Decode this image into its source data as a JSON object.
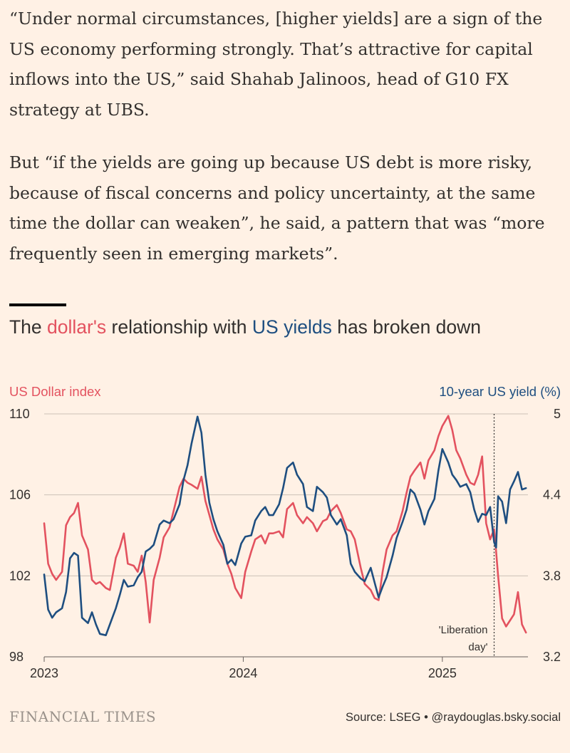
{
  "article": {
    "paragraph1": "“Under normal circumstances, [higher yields] are a sign of the US economy performing strongly. That’s attractive for capital inflows into the US,” said Shahab Jalinoos, head of G10 FX strategy at UBS.",
    "paragraph2": "But “if the yields are going up because US debt is more risky, because of fiscal concerns and policy uncertainty, at the same time the dollar can weaken”, he said, a pattern that was “more frequently seen in emerging markets”."
  },
  "headline": {
    "part1": "The ",
    "red": "dollar's",
    "part2": " relationship with ",
    "blue": "US yields",
    "part3": " has broken down"
  },
  "footer": {
    "brand": "FINANCIAL TIMES",
    "source": "Source: LSEG • @raydouglas.bsky.social"
  },
  "colors": {
    "background": "#fff1e5",
    "dollar": "#e3525f",
    "yield": "#1e4e80",
    "grid": "#ccc1b7",
    "text": "#33302e"
  },
  "chart_data": {
    "type": "line",
    "left_axis_label": "US Dollar index",
    "right_axis_label": "10-year US yield (%)",
    "left_ylim": [
      98,
      110
    ],
    "right_ylim": [
      3.2,
      5
    ],
    "left_ticks": [
      "110",
      "106",
      "102",
      "98"
    ],
    "left_tick_values": [
      110,
      106,
      102,
      98
    ],
    "right_ticks": [
      "5",
      "4.4",
      "3.8",
      "3.2"
    ],
    "right_tick_values": [
      5,
      4.4,
      3.8,
      3.2
    ],
    "x_ticks": [
      "2023",
      "2024",
      "2025"
    ],
    "x_tick_values": [
      2023.0,
      2024.0,
      2025.0
    ],
    "xlim": [
      2023.0,
      2025.43
    ],
    "grid": true,
    "annotation": {
      "text_line1": "'Liberation",
      "text_line2": "day'",
      "x": 2025.26
    },
    "series": [
      {
        "name": "US Dollar index",
        "axis": "left",
        "x": [
          2023.0,
          2023.02,
          2023.04,
          2023.06,
          2023.09,
          2023.11,
          2023.13,
          2023.15,
          2023.17,
          2023.19,
          2023.22,
          2023.24,
          2023.26,
          2023.28,
          2023.31,
          2023.33,
          2023.36,
          2023.38,
          2023.4,
          2023.42,
          2023.45,
          2023.47,
          2023.49,
          2023.51,
          2023.53,
          2023.55,
          2023.58,
          2023.6,
          2023.63,
          2023.65,
          2023.68,
          2023.7,
          2023.72,
          2023.74,
          2023.77,
          2023.79,
          2023.81,
          2023.83,
          2023.85,
          2023.87,
          2023.9,
          2023.92,
          2023.94,
          2023.96,
          2023.99,
          2024.01,
          2024.04,
          2024.06,
          2024.09,
          2024.11,
          2024.13,
          2024.15,
          2024.18,
          2024.2,
          2024.22,
          2024.25,
          2024.27,
          2024.3,
          2024.32,
          2024.35,
          2024.37,
          2024.4,
          2024.42,
          2024.44,
          2024.47,
          2024.49,
          2024.52,
          2024.54,
          2024.56,
          2024.59,
          2024.61,
          2024.64,
          2024.66,
          2024.68,
          2024.7,
          2024.72,
          2024.75,
          2024.77,
          2024.8,
          2024.82,
          2024.84,
          2024.86,
          2024.89,
          2024.91,
          2024.93,
          2024.96,
          2024.98,
          2025.0,
          2025.03,
          2025.05,
          2025.07,
          2025.09,
          2025.12,
          2025.14,
          2025.16,
          2025.18,
          2025.2,
          2025.22,
          2025.24,
          2025.26,
          2025.27,
          2025.28,
          2025.3,
          2025.32,
          2025.34,
          2025.36,
          2025.38,
          2025.4,
          2025.42
        ],
        "values": [
          104.6,
          102.6,
          102.1,
          101.8,
          102.2,
          104.5,
          104.9,
          105.1,
          105.6,
          104.0,
          103.3,
          101.8,
          101.6,
          101.7,
          101.4,
          101.3,
          102.9,
          103.4,
          104.1,
          102.6,
          102.5,
          102.2,
          103.0,
          101.7,
          99.7,
          101.8,
          102.9,
          103.9,
          104.4,
          105.2,
          106.4,
          106.8,
          106.6,
          106.5,
          106.3,
          106.9,
          105.7,
          105.0,
          104.3,
          103.8,
          103.3,
          102.6,
          102.1,
          101.4,
          100.9,
          102.2,
          103.2,
          103.8,
          104.0,
          103.6,
          104.1,
          104.1,
          104.2,
          103.9,
          105.3,
          105.6,
          105.0,
          104.6,
          104.9,
          104.6,
          104.2,
          104.7,
          104.8,
          105.2,
          105.5,
          105.1,
          104.3,
          104.2,
          103.8,
          102.4,
          101.6,
          101.3,
          100.9,
          100.8,
          102.2,
          103.3,
          104.0,
          104.2,
          105.2,
          106.1,
          106.9,
          107.2,
          107.6,
          106.8,
          107.7,
          108.2,
          108.9,
          109.4,
          109.9,
          109.2,
          108.2,
          107.8,
          107.0,
          106.6,
          106.5,
          107.0,
          107.9,
          104.6,
          103.8,
          104.3,
          103.2,
          102.0,
          99.9,
          99.5,
          99.8,
          100.1,
          101.2,
          99.6,
          99.2
        ]
      },
      {
        "name": "10-year US yield (%)",
        "axis": "right",
        "x": [
          2023.0,
          2023.02,
          2023.04,
          2023.06,
          2023.09,
          2023.11,
          2023.13,
          2023.15,
          2023.17,
          2023.19,
          2023.22,
          2023.24,
          2023.26,
          2023.28,
          2023.31,
          2023.33,
          2023.36,
          2023.38,
          2023.4,
          2023.42,
          2023.45,
          2023.47,
          2023.49,
          2023.51,
          2023.53,
          2023.55,
          2023.58,
          2023.6,
          2023.63,
          2023.65,
          2023.68,
          2023.7,
          2023.72,
          2023.74,
          2023.77,
          2023.79,
          2023.81,
          2023.83,
          2023.85,
          2023.87,
          2023.9,
          2023.92,
          2023.94,
          2023.96,
          2023.99,
          2024.01,
          2024.04,
          2024.06,
          2024.09,
          2024.11,
          2024.13,
          2024.15,
          2024.18,
          2024.2,
          2024.22,
          2024.25,
          2024.27,
          2024.3,
          2024.32,
          2024.35,
          2024.37,
          2024.4,
          2024.42,
          2024.44,
          2024.47,
          2024.49,
          2024.52,
          2024.54,
          2024.56,
          2024.59,
          2024.61,
          2024.64,
          2024.66,
          2024.68,
          2024.7,
          2024.72,
          2024.75,
          2024.77,
          2024.8,
          2024.82,
          2024.84,
          2024.86,
          2024.89,
          2024.91,
          2024.93,
          2024.96,
          2024.98,
          2025.0,
          2025.03,
          2025.05,
          2025.07,
          2025.09,
          2025.12,
          2025.14,
          2025.16,
          2025.18,
          2025.2,
          2025.22,
          2025.24,
          2025.26,
          2025.27,
          2025.28,
          2025.3,
          2025.32,
          2025.34,
          2025.36,
          2025.38,
          2025.4,
          2025.42
        ],
        "values": [
          3.81,
          3.55,
          3.49,
          3.53,
          3.56,
          3.68,
          3.93,
          3.97,
          3.95,
          3.49,
          3.45,
          3.53,
          3.44,
          3.37,
          3.36,
          3.44,
          3.56,
          3.66,
          3.77,
          3.72,
          3.73,
          3.79,
          3.83,
          3.98,
          4.0,
          4.03,
          4.18,
          4.21,
          4.19,
          4.22,
          4.33,
          4.51,
          4.62,
          4.78,
          4.98,
          4.86,
          4.55,
          4.34,
          4.22,
          4.13,
          4.03,
          3.89,
          3.92,
          3.88,
          4.04,
          4.09,
          4.1,
          4.21,
          4.28,
          4.31,
          4.25,
          4.25,
          4.33,
          4.45,
          4.6,
          4.64,
          4.55,
          4.48,
          4.31,
          4.28,
          4.46,
          4.42,
          4.38,
          4.25,
          4.18,
          4.22,
          4.1,
          3.89,
          3.83,
          3.78,
          3.76,
          3.86,
          3.75,
          3.64,
          3.72,
          3.79,
          3.95,
          4.08,
          4.2,
          4.29,
          4.44,
          4.41,
          4.29,
          4.18,
          4.28,
          4.37,
          4.58,
          4.74,
          4.64,
          4.55,
          4.51,
          4.46,
          4.48,
          4.42,
          4.29,
          4.2,
          4.26,
          4.25,
          4.31,
          4.05,
          4.01,
          4.39,
          4.35,
          4.19,
          4.44,
          4.5,
          4.57,
          4.44,
          4.45
        ]
      }
    ]
  }
}
